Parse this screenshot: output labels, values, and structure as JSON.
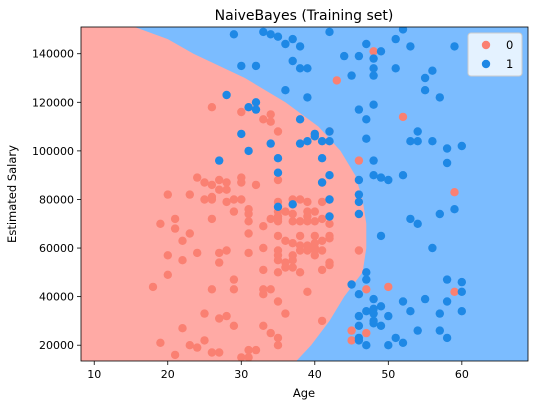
{
  "chart_data": {
    "type": "scatter",
    "title": "NaiveBayes (Training set)",
    "xlabel": "Age",
    "ylabel": "Estimated Salary",
    "xlim": [
      8.2,
      69.0
    ],
    "ylim": [
      13500,
      151000
    ],
    "xticks": [
      10,
      20,
      30,
      40,
      50,
      60
    ],
    "yticks": [
      20000,
      40000,
      60000,
      80000,
      100000,
      120000,
      140000
    ],
    "grid": false,
    "legend_position": "top-right",
    "region_colors": {
      "0": "#ffaaa5",
      "1": "#7bbcff"
    },
    "boundary": [
      [
        13500,
        37.5
      ],
      [
        20000,
        39.5
      ],
      [
        30000,
        42
      ],
      [
        40000,
        44
      ],
      [
        50000,
        46.5
      ],
      [
        60000,
        47
      ],
      [
        70000,
        47
      ],
      [
        80000,
        46.5
      ],
      [
        90000,
        45.5
      ],
      [
        100000,
        43.5
      ],
      [
        110000,
        40.5
      ],
      [
        120000,
        36
      ],
      [
        130000,
        30.5
      ],
      [
        140000,
        23.5
      ],
      [
        146000,
        20
      ],
      [
        151000,
        15.5
      ]
    ],
    "series": [
      {
        "name": "0",
        "color": "#fa8072",
        "points": [
          [
            18,
            44000
          ],
          [
            19,
            21000
          ],
          [
            19,
            70000
          ],
          [
            20,
            49000
          ],
          [
            20,
            57000
          ],
          [
            20,
            82000
          ],
          [
            21,
            16000
          ],
          [
            21,
            68000
          ],
          [
            21,
            72000
          ],
          [
            22,
            27000
          ],
          [
            22,
            55000
          ],
          [
            22,
            63000
          ],
          [
            23,
            20000
          ],
          [
            23,
            66000
          ],
          [
            23,
            82000
          ],
          [
            24,
            19000
          ],
          [
            24,
            58000
          ],
          [
            24,
            89000
          ],
          [
            25,
            22000
          ],
          [
            25,
            33000
          ],
          [
            25,
            80000
          ],
          [
            25,
            87000
          ],
          [
            26,
            17000
          ],
          [
            26,
            43000
          ],
          [
            26,
            72000
          ],
          [
            26,
            80000
          ],
          [
            26,
            81000
          ],
          [
            26,
            86000
          ],
          [
            26,
            118000
          ],
          [
            27,
            17000
          ],
          [
            27,
            31000
          ],
          [
            27,
            54000
          ],
          [
            27,
            58000
          ],
          [
            27,
            84000
          ],
          [
            27,
            88000
          ],
          [
            28,
            32000
          ],
          [
            28,
            59000
          ],
          [
            28,
            79000
          ],
          [
            28,
            84000
          ],
          [
            28,
            87000
          ],
          [
            29,
            28000
          ],
          [
            29,
            43000
          ],
          [
            29,
            47000
          ],
          [
            29,
            75000
          ],
          [
            29,
            80000
          ],
          [
            30,
            15000
          ],
          [
            30,
            80000
          ],
          [
            30,
            87000
          ],
          [
            30,
            89000
          ],
          [
            30,
            116000
          ],
          [
            31,
            15000
          ],
          [
            31,
            18000
          ],
          [
            31,
            58000
          ],
          [
            31,
            66000
          ],
          [
            31,
            71000
          ],
          [
            31,
            74000
          ],
          [
            31,
            76000
          ],
          [
            32,
            18000
          ],
          [
            32,
            86000
          ],
          [
            33,
            28000
          ],
          [
            33,
            41000
          ],
          [
            33,
            43000
          ],
          [
            33,
            51000
          ],
          [
            33,
            60000
          ],
          [
            33,
            69000
          ],
          [
            33,
            113000
          ],
          [
            34,
            25000
          ],
          [
            34,
            43000
          ],
          [
            34,
            72000
          ],
          [
            34,
            112000
          ],
          [
            34,
            115000
          ],
          [
            35,
            20000
          ],
          [
            35,
            23000
          ],
          [
            35,
            38000
          ],
          [
            35,
            50000
          ],
          [
            35,
            55000
          ],
          [
            35,
            57000
          ],
          [
            35,
            59000
          ],
          [
            35,
            65000
          ],
          [
            35,
            71000
          ],
          [
            35,
            72000
          ],
          [
            35,
            73000
          ],
          [
            35,
            75000
          ],
          [
            35,
            79000
          ],
          [
            35,
            88000
          ],
          [
            35,
            108000
          ],
          [
            36,
            33000
          ],
          [
            36,
            52000
          ],
          [
            36,
            54000
          ],
          [
            36,
            63000
          ],
          [
            36,
            75000
          ],
          [
            37,
            52000
          ],
          [
            37,
            55000
          ],
          [
            37,
            57000
          ],
          [
            37,
            62000
          ],
          [
            37,
            71000
          ],
          [
            37,
            74000
          ],
          [
            37,
            78000
          ],
          [
            37,
            80000
          ],
          [
            38,
            50000
          ],
          [
            38,
            59000
          ],
          [
            38,
            61000
          ],
          [
            38,
            65000
          ],
          [
            38,
            71000
          ],
          [
            38,
            80000
          ],
          [
            39,
            42000
          ],
          [
            39,
            59000
          ],
          [
            39,
            61000
          ],
          [
            39,
            71000
          ],
          [
            39,
            73000
          ],
          [
            39,
            75000
          ],
          [
            39,
            79000
          ],
          [
            40,
            57000
          ],
          [
            40,
            59000
          ],
          [
            40,
            60000
          ],
          [
            40,
            62000
          ],
          [
            40,
            65000
          ],
          [
            40,
            71000
          ],
          [
            40,
            75000
          ],
          [
            40,
            107000
          ],
          [
            41,
            30000
          ],
          [
            41,
            51000
          ],
          [
            41,
            59000
          ],
          [
            41,
            63000
          ],
          [
            41,
            72000
          ],
          [
            41,
            79000
          ],
          [
            41,
            87000
          ],
          [
            42,
            53000
          ],
          [
            42,
            54000
          ],
          [
            42,
            64000
          ],
          [
            42,
            65000
          ],
          [
            42,
            70000
          ],
          [
            42,
            73000
          ],
          [
            42,
            80000
          ],
          [
            42,
            108000
          ],
          [
            43,
            129000
          ],
          [
            45,
            22000
          ],
          [
            45,
            26000
          ],
          [
            46,
            59000
          ],
          [
            46,
            96000
          ],
          [
            47,
            25000
          ],
          [
            47,
            43000
          ],
          [
            48,
            141000
          ],
          [
            50,
            44000
          ],
          [
            52,
            114000
          ],
          [
            59,
            42000
          ],
          [
            59,
            83000
          ]
        ]
      },
      {
        "name": "1",
        "color": "#1e88e5",
        "points": [
          [
            27,
            96000
          ],
          [
            28,
            123000
          ],
          [
            29,
            148000
          ],
          [
            30,
            107000
          ],
          [
            30,
            135000
          ],
          [
            31,
            100000
          ],
          [
            31,
            118000
          ],
          [
            32,
            117000
          ],
          [
            32,
            120000
          ],
          [
            32,
            135000
          ],
          [
            33,
            149000
          ],
          [
            34,
            103000
          ],
          [
            34,
            148000
          ],
          [
            35,
            77000
          ],
          [
            35,
            91000
          ],
          [
            35,
            97000
          ],
          [
            35,
            147000
          ],
          [
            36,
            125000
          ],
          [
            36,
            144000
          ],
          [
            37,
            78000
          ],
          [
            37,
            137000
          ],
          [
            37,
            146000
          ],
          [
            38,
            103000
          ],
          [
            38,
            113000
          ],
          [
            38,
            134000
          ],
          [
            38,
            143000
          ],
          [
            39,
            104000
          ],
          [
            39,
            122000
          ],
          [
            39,
            134000
          ],
          [
            40,
            106000
          ],
          [
            40,
            107000
          ],
          [
            41,
            87000
          ],
          [
            41,
            97000
          ],
          [
            41,
            104000
          ],
          [
            42,
            73000
          ],
          [
            42,
            80000
          ],
          [
            42,
            90000
          ],
          [
            42,
            104000
          ],
          [
            42,
            108000
          ],
          [
            42,
            149000
          ],
          [
            44,
            139000
          ],
          [
            45,
            45000
          ],
          [
            45,
            131000
          ],
          [
            46,
            22000
          ],
          [
            46,
            23000
          ],
          [
            46,
            28000
          ],
          [
            46,
            32000
          ],
          [
            46,
            41000
          ],
          [
            46,
            74000
          ],
          [
            46,
            79000
          ],
          [
            46,
            82000
          ],
          [
            46,
            88000
          ],
          [
            46,
            117000
          ],
          [
            46,
            139000
          ],
          [
            47,
            20000
          ],
          [
            47,
            34000
          ],
          [
            47,
            47000
          ],
          [
            47,
            50000
          ],
          [
            47,
            105000
          ],
          [
            47,
            113000
          ],
          [
            47,
            144000
          ],
          [
            48,
            29000
          ],
          [
            48,
            30000
          ],
          [
            48,
            33000
          ],
          [
            48,
            35000
          ],
          [
            48,
            39000
          ],
          [
            48,
            90000
          ],
          [
            48,
            96000
          ],
          [
            48,
            119000
          ],
          [
            48,
            131000
          ],
          [
            48,
            134000
          ],
          [
            48,
            138000
          ],
          [
            49,
            28000
          ],
          [
            49,
            36000
          ],
          [
            49,
            65000
          ],
          [
            49,
            89000
          ],
          [
            49,
            141000
          ],
          [
            50,
            20000
          ],
          [
            50,
            32000
          ],
          [
            50,
            88000
          ],
          [
            51,
            23000
          ],
          [
            51,
            134000
          ],
          [
            51,
            146000
          ],
          [
            52,
            21000
          ],
          [
            52,
            38000
          ],
          [
            52,
            90000
          ],
          [
            52,
            150000
          ],
          [
            53,
            34000
          ],
          [
            53,
            72000
          ],
          [
            53,
            104000
          ],
          [
            53,
            143000
          ],
          [
            54,
            26000
          ],
          [
            54,
            70000
          ],
          [
            54,
            104000
          ],
          [
            54,
            108000
          ],
          [
            55,
            39000
          ],
          [
            55,
            125000
          ],
          [
            55,
            130000
          ],
          [
            56,
            60000
          ],
          [
            56,
            104000
          ],
          [
            56,
            133000
          ],
          [
            57,
            26000
          ],
          [
            57,
            33000
          ],
          [
            57,
            74000
          ],
          [
            57,
            122000
          ],
          [
            58,
            23000
          ],
          [
            58,
            38000
          ],
          [
            58,
            47000
          ],
          [
            58,
            95000
          ],
          [
            58,
            101000
          ],
          [
            59,
            76000
          ],
          [
            59,
            143000
          ],
          [
            60,
            34000
          ],
          [
            60,
            42000
          ],
          [
            60,
            46000
          ],
          [
            60,
            102000
          ]
        ]
      }
    ]
  }
}
